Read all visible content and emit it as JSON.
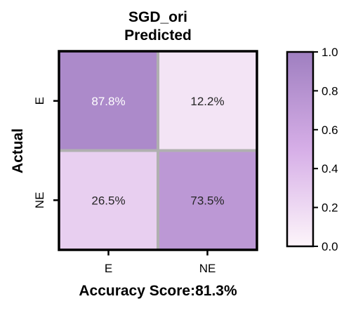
{
  "chart_data": {
    "type": "heatmap",
    "title": "SGD_ori",
    "subtitle": "Predicted",
    "xlabel": "Accuracy Score:81.3%",
    "ylabel": "Actual",
    "x_categories": [
      "E",
      "NE"
    ],
    "y_categories": [
      "E",
      "NE"
    ],
    "values": [
      [
        87.8,
        12.2
      ],
      [
        26.5,
        73.5
      ]
    ],
    "cell_labels": [
      [
        "87.8%",
        "12.2%"
      ],
      [
        "26.5%",
        "73.5%"
      ]
    ],
    "colorbar": {
      "range": [
        0.0,
        1.0
      ],
      "ticks": [
        "0.0",
        "0.2",
        "0.4",
        "0.6",
        "0.8",
        "1.0"
      ],
      "low_color": "#fdf5fa",
      "high_color": "#9f7fc0"
    },
    "grid_color": "#b0b0b0",
    "border_color": "#000000"
  }
}
